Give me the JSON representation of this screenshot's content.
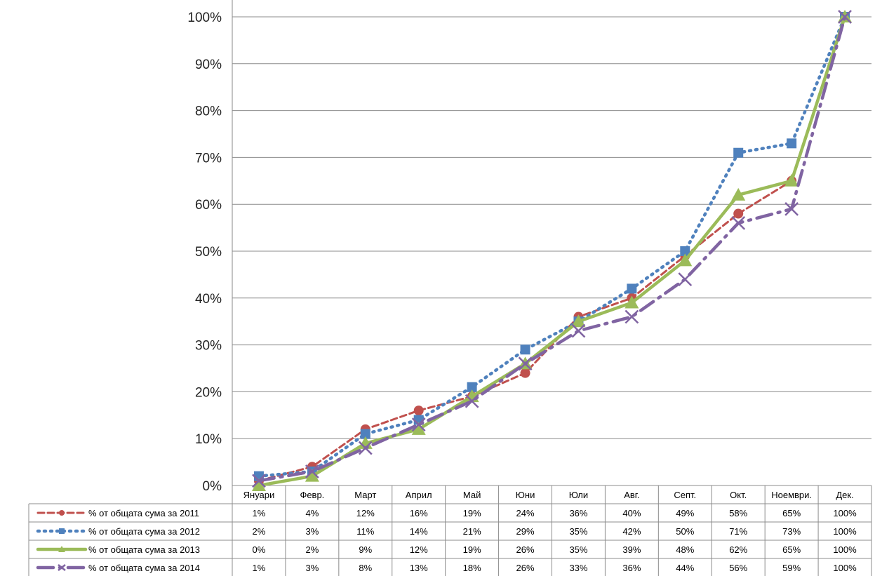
{
  "chart_data": {
    "type": "line",
    "categories": [
      "Януари",
      "Февр.",
      "Март",
      "Април",
      "Май",
      "Юни",
      "Юли",
      "Авг.",
      "Септ.",
      "Окт.",
      "Ноември.",
      "Дек."
    ],
    "y_ticks": [
      "0%",
      "10%",
      "20%",
      "30%",
      "40%",
      "50%",
      "60%",
      "70%",
      "80%",
      "90%",
      "100%"
    ],
    "ylim": [
      0,
      100
    ],
    "grid": true,
    "legend_placement": "data-table-left",
    "series": [
      {
        "name": "% от общата сума за 2011",
        "values": [
          1,
          4,
          12,
          16,
          19,
          24,
          36,
          40,
          49,
          58,
          65,
          100
        ],
        "labels": [
          "1%",
          "4%",
          "12%",
          "16%",
          "19%",
          "24%",
          "36%",
          "40%",
          "49%",
          "58%",
          "65%",
          "100%"
        ],
        "color": "#C0504D",
        "dash": "dashed",
        "marker": "circle"
      },
      {
        "name": "% от общата сума за 2012",
        "values": [
          2,
          3,
          11,
          14,
          21,
          29,
          35,
          42,
          50,
          71,
          73,
          100
        ],
        "labels": [
          "2%",
          "3%",
          "11%",
          "14%",
          "21%",
          "29%",
          "35%",
          "42%",
          "50%",
          "71%",
          "73%",
          "100%"
        ],
        "color": "#4F81BD",
        "dash": "dotted",
        "marker": "square"
      },
      {
        "name": "% от общата сума за 2013",
        "values": [
          0,
          2,
          9,
          12,
          19,
          26,
          35,
          39,
          48,
          62,
          65,
          100
        ],
        "labels": [
          "0%",
          "2%",
          "9%",
          "12%",
          "19%",
          "26%",
          "35%",
          "39%",
          "48%",
          "62%",
          "65%",
          "100%"
        ],
        "color": "#9BBB59",
        "dash": "solid",
        "marker": "triangle"
      },
      {
        "name": "% от общата сума за 2014",
        "values": [
          1,
          3,
          8,
          13,
          18,
          26,
          33,
          36,
          44,
          56,
          59,
          100
        ],
        "labels": [
          "1%",
          "3%",
          "8%",
          "13%",
          "18%",
          "26%",
          "33%",
          "36%",
          "44%",
          "56%",
          "59%",
          "100%"
        ],
        "color": "#8064A2",
        "dash": "longdashdot",
        "marker": "x"
      }
    ]
  }
}
